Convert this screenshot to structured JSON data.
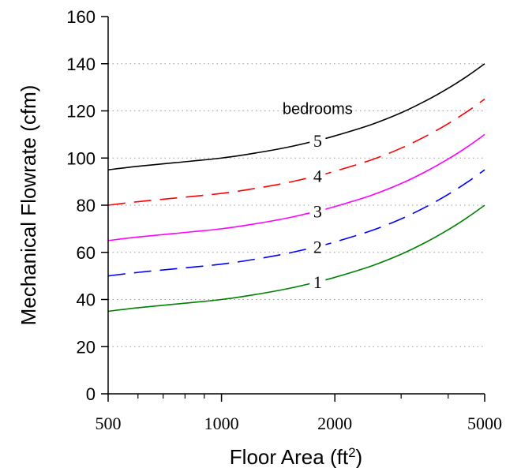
{
  "chart_data": {
    "type": "line",
    "xlabel": "Floor Area (ft",
    "xlabel_sup": "2",
    "xlabel_close": ")",
    "ylabel": "Mechanical Flowrate (cfm)",
    "xscale": "log",
    "xlim": [
      500,
      5000
    ],
    "ylim": [
      0,
      160
    ],
    "xticks": [
      500,
      1000,
      2000,
      5000
    ],
    "xtick_labels": [
      "500",
      "1000",
      "2000",
      "5000"
    ],
    "yticks": [
      0,
      20,
      40,
      60,
      80,
      100,
      120,
      140,
      160
    ],
    "ytick_labels": [
      "0",
      "20",
      "40",
      "60",
      "80",
      "100",
      "120",
      "140",
      "160"
    ],
    "grid": "horizontal dotted",
    "annotation": "bedrooms",
    "series": [
      {
        "name": "1",
        "dash": "solid",
        "color": "#008000",
        "x": [
          500,
          600,
          750,
          1000,
          1250,
          1500,
          1800,
          2000,
          2500,
          3000,
          3500,
          4000,
          4500,
          5000
        ],
        "y": [
          35,
          36.5,
          38,
          40,
          42.3,
          44.6,
          47.5,
          49.4,
          54.2,
          59.2,
          64.4,
          69.6,
          74.8,
          80
        ]
      },
      {
        "name": "2",
        "dash": "long",
        "color": "#0000ff",
        "x": [
          500,
          600,
          750,
          1000,
          1250,
          1500,
          1800,
          2000,
          2500,
          3000,
          3500,
          4000,
          4500,
          5000
        ],
        "y": [
          50,
          51.5,
          53,
          55,
          57.3,
          59.6,
          62.5,
          64.4,
          69.2,
          74.2,
          79.4,
          84.6,
          89.8,
          95
        ]
      },
      {
        "name": "3",
        "dash": "solid",
        "color": "#ff00ff",
        "x": [
          500,
          600,
          750,
          1000,
          1250,
          1500,
          1800,
          2000,
          2500,
          3000,
          3500,
          4000,
          4500,
          5000
        ],
        "y": [
          65,
          66.5,
          68,
          70,
          72.3,
          74.6,
          77.5,
          79.4,
          84.2,
          89.2,
          94.4,
          99.6,
          104.8,
          110
        ]
      },
      {
        "name": "4",
        "dash": "long",
        "color": "#ff0000",
        "x": [
          500,
          600,
          750,
          1000,
          1250,
          1500,
          1800,
          2000,
          2500,
          3000,
          3500,
          4000,
          4500,
          5000
        ],
        "y": [
          80,
          81.5,
          83,
          85,
          87.3,
          89.6,
          92.5,
          94.4,
          99.2,
          104.2,
          109.4,
          114.6,
          119.8,
          125
        ]
      },
      {
        "name": "5",
        "dash": "solid",
        "color": "#000000",
        "x": [
          500,
          600,
          750,
          1000,
          1250,
          1500,
          1800,
          2000,
          2500,
          3000,
          3500,
          4000,
          4500,
          5000
        ],
        "y": [
          95,
          96.5,
          98,
          100,
          102.3,
          104.6,
          107.5,
          109.4,
          114.2,
          119.2,
          124.4,
          129.6,
          134.8,
          140
        ]
      }
    ],
    "label_positions": [
      {
        "series": "1",
        "x": 1800,
        "y": 47.5
      },
      {
        "series": "2",
        "x": 1800,
        "y": 62.5
      },
      {
        "series": "3",
        "x": 1800,
        "y": 77.5
      },
      {
        "series": "4",
        "x": 1800,
        "y": 92.5
      },
      {
        "series": "5",
        "x": 1800,
        "y": 107.5
      }
    ],
    "annotation_position": {
      "x": 1800,
      "y": 121
    }
  }
}
